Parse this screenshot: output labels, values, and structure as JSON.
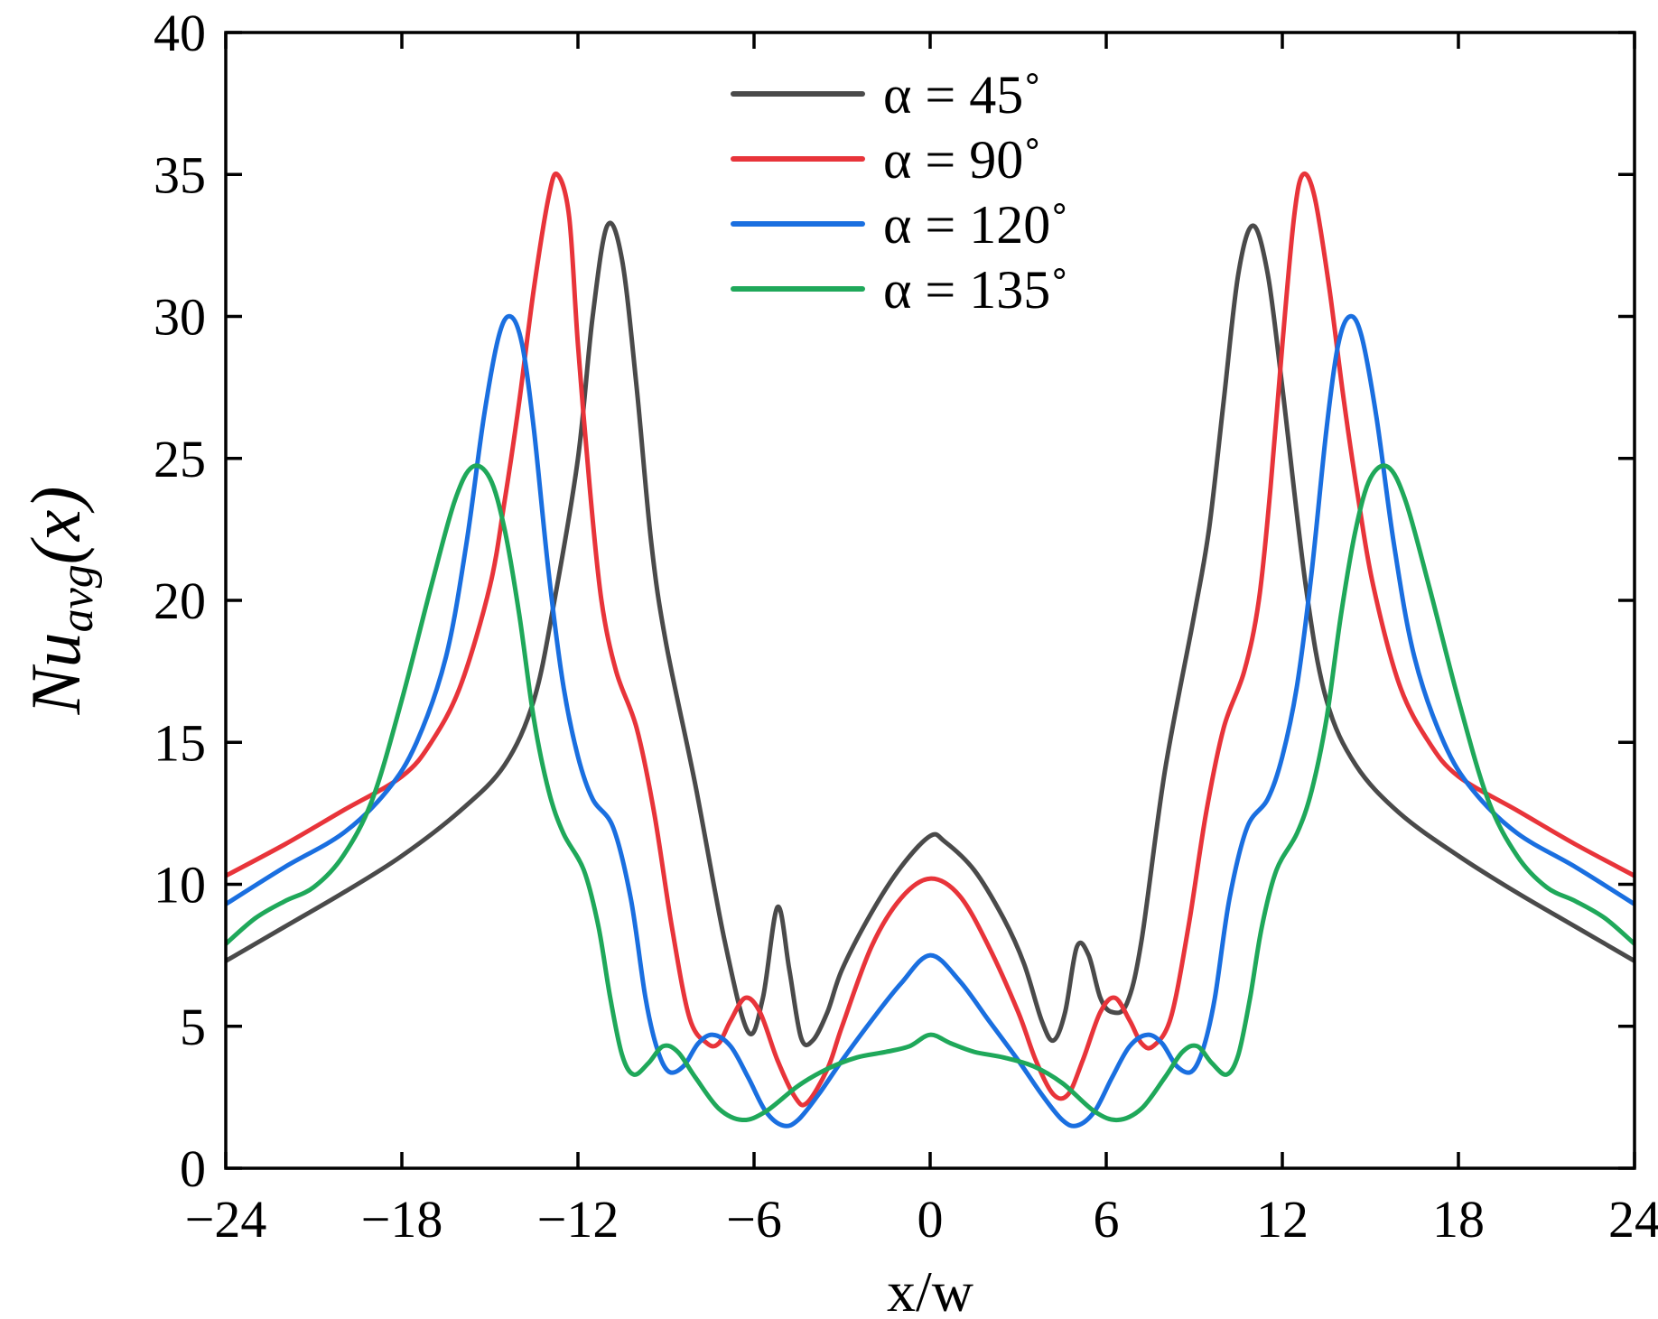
{
  "chart_data": {
    "type": "line",
    "title": "",
    "xlabel": "x/w",
    "ylabel_main": "Nu",
    "ylabel_sub": "avg",
    "ylabel_suffix": "(x)",
    "xlim": [
      -24,
      24
    ],
    "ylim": [
      0,
      40
    ],
    "xticks": [
      -24,
      -18,
      -12,
      -6,
      0,
      6,
      12,
      18,
      24
    ],
    "xtick_labels": [
      "−24",
      "−18",
      "−12",
      "−6",
      "0",
      "6",
      "12",
      "18",
      "24"
    ],
    "yticks": [
      0,
      5,
      10,
      15,
      20,
      25,
      30,
      35,
      40
    ],
    "ytick_labels": [
      "0",
      "5",
      "10",
      "15",
      "20",
      "25",
      "30",
      "35",
      "40"
    ],
    "legend_position": "top-center",
    "series": [
      {
        "name": "α = 45˚",
        "color": "#4a4a4a",
        "points": [
          [
            -24,
            7.3
          ],
          [
            -22,
            8.5
          ],
          [
            -20,
            9.7
          ],
          [
            -18,
            11.0
          ],
          [
            -16,
            12.6
          ],
          [
            -14.5,
            14.2
          ],
          [
            -13.5,
            16.5
          ],
          [
            -12.8,
            20.0
          ],
          [
            -12.0,
            25.0
          ],
          [
            -11.5,
            30.0
          ],
          [
            -11.0,
            33.2
          ],
          [
            -10.5,
            32.0
          ],
          [
            -10.0,
            27.5
          ],
          [
            -9.5,
            22.0
          ],
          [
            -9.0,
            18.5
          ],
          [
            -8.0,
            13.5
          ],
          [
            -7.0,
            8.0
          ],
          [
            -6.2,
            4.8
          ],
          [
            -5.7,
            6.0
          ],
          [
            -5.2,
            9.2
          ],
          [
            -4.8,
            7.0
          ],
          [
            -4.4,
            4.6
          ],
          [
            -4.0,
            4.5
          ],
          [
            -3.5,
            5.5
          ],
          [
            -3.0,
            7.0
          ],
          [
            -2.0,
            9.0
          ],
          [
            -1.0,
            10.6
          ],
          [
            0.0,
            11.7
          ],
          [
            0.5,
            11.5
          ],
          [
            1.5,
            10.5
          ],
          [
            2.5,
            8.8
          ],
          [
            3.2,
            7.2
          ],
          [
            3.8,
            5.2
          ],
          [
            4.2,
            4.5
          ],
          [
            4.6,
            5.5
          ],
          [
            5.0,
            7.8
          ],
          [
            5.4,
            7.5
          ],
          [
            5.8,
            6.0
          ],
          [
            6.2,
            5.5
          ],
          [
            6.7,
            5.8
          ],
          [
            7.2,
            8.0
          ],
          [
            8.0,
            14.0
          ],
          [
            9.0,
            19.5
          ],
          [
            9.5,
            22.5
          ],
          [
            10.0,
            27.0
          ],
          [
            10.5,
            31.5
          ],
          [
            11.0,
            33.2
          ],
          [
            11.5,
            31.5
          ],
          [
            12.0,
            27.5
          ],
          [
            12.8,
            20.5
          ],
          [
            13.5,
            16.5
          ],
          [
            14.5,
            14.2
          ],
          [
            16.0,
            12.5
          ],
          [
            18.0,
            11.0
          ],
          [
            20.0,
            9.7
          ],
          [
            22.0,
            8.5
          ],
          [
            24.0,
            7.3
          ]
        ]
      },
      {
        "name": "α = 90˚",
        "color": "#e8343a",
        "points": [
          [
            -24,
            10.3
          ],
          [
            -22,
            11.4
          ],
          [
            -20,
            12.6
          ],
          [
            -18,
            13.8
          ],
          [
            -17,
            15.0
          ],
          [
            -16,
            17.0
          ],
          [
            -15,
            20.5
          ],
          [
            -14.5,
            23.5
          ],
          [
            -14.0,
            27.0
          ],
          [
            -13.5,
            31.0
          ],
          [
            -13.0,
            34.2
          ],
          [
            -12.7,
            35.0
          ],
          [
            -12.3,
            33.5
          ],
          [
            -12.0,
            29.0
          ],
          [
            -11.6,
            24.0
          ],
          [
            -11.2,
            20.0
          ],
          [
            -10.7,
            17.5
          ],
          [
            -10.0,
            15.5
          ],
          [
            -9.4,
            12.5
          ],
          [
            -8.8,
            8.5
          ],
          [
            -8.2,
            5.3
          ],
          [
            -7.6,
            4.4
          ],
          [
            -7.2,
            4.4
          ],
          [
            -6.8,
            5.2
          ],
          [
            -6.3,
            6.0
          ],
          [
            -5.8,
            5.5
          ],
          [
            -5.2,
            3.8
          ],
          [
            -4.6,
            2.5
          ],
          [
            -4.2,
            2.3
          ],
          [
            -3.5,
            3.5
          ],
          [
            -3.0,
            5.0
          ],
          [
            -2.0,
            7.8
          ],
          [
            -1.0,
            9.5
          ],
          [
            0.0,
            10.2
          ],
          [
            1.0,
            9.6
          ],
          [
            2.0,
            7.8
          ],
          [
            3.0,
            5.5
          ],
          [
            3.6,
            3.8
          ],
          [
            4.2,
            2.6
          ],
          [
            4.7,
            2.6
          ],
          [
            5.2,
            3.8
          ],
          [
            5.8,
            5.5
          ],
          [
            6.3,
            6.0
          ],
          [
            6.8,
            5.2
          ],
          [
            7.2,
            4.4
          ],
          [
            7.6,
            4.3
          ],
          [
            8.2,
            5.3
          ],
          [
            8.8,
            8.5
          ],
          [
            9.4,
            12.5
          ],
          [
            10.0,
            15.5
          ],
          [
            10.7,
            17.5
          ],
          [
            11.2,
            20.0
          ],
          [
            11.6,
            24.0
          ],
          [
            12.0,
            29.0
          ],
          [
            12.4,
            33.5
          ],
          [
            12.7,
            35.0
          ],
          [
            13.1,
            34.2
          ],
          [
            13.6,
            31.0
          ],
          [
            14.1,
            27.0
          ],
          [
            14.6,
            23.5
          ],
          [
            15.1,
            20.5
          ],
          [
            16.0,
            17.0
          ],
          [
            17.0,
            15.0
          ],
          [
            18.0,
            13.8
          ],
          [
            20.0,
            12.6
          ],
          [
            22.0,
            11.4
          ],
          [
            24.0,
            10.3
          ]
        ]
      },
      {
        "name": "α = 120˚",
        "color": "#1a6fe0",
        "points": [
          [
            -24,
            9.3
          ],
          [
            -22,
            10.6
          ],
          [
            -20,
            11.8
          ],
          [
            -18.5,
            13.3
          ],
          [
            -17.5,
            15.0
          ],
          [
            -16.5,
            18.0
          ],
          [
            -15.8,
            22.0
          ],
          [
            -15.2,
            26.5
          ],
          [
            -14.7,
            29.3
          ],
          [
            -14.3,
            30.0
          ],
          [
            -13.9,
            29.0
          ],
          [
            -13.5,
            26.0
          ],
          [
            -13.0,
            21.0
          ],
          [
            -12.5,
            17.0
          ],
          [
            -12.0,
            14.5
          ],
          [
            -11.5,
            13.0
          ],
          [
            -10.8,
            12.0
          ],
          [
            -10.2,
            9.5
          ],
          [
            -9.7,
            6.0
          ],
          [
            -9.3,
            4.2
          ],
          [
            -8.9,
            3.4
          ],
          [
            -8.4,
            3.6
          ],
          [
            -7.9,
            4.4
          ],
          [
            -7.4,
            4.7
          ],
          [
            -6.8,
            4.3
          ],
          [
            -6.2,
            3.2
          ],
          [
            -5.6,
            2.0
          ],
          [
            -5.0,
            1.5
          ],
          [
            -4.5,
            1.7
          ],
          [
            -3.8,
            2.6
          ],
          [
            -3.0,
            3.8
          ],
          [
            -2.0,
            5.2
          ],
          [
            -1.0,
            6.5
          ],
          [
            0.0,
            7.5
          ],
          [
            1.0,
            6.6
          ],
          [
            2.0,
            5.2
          ],
          [
            3.0,
            3.8
          ],
          [
            3.8,
            2.6
          ],
          [
            4.5,
            1.7
          ],
          [
            5.0,
            1.5
          ],
          [
            5.6,
            2.0
          ],
          [
            6.2,
            3.2
          ],
          [
            6.8,
            4.3
          ],
          [
            7.4,
            4.7
          ],
          [
            7.9,
            4.4
          ],
          [
            8.4,
            3.6
          ],
          [
            8.9,
            3.4
          ],
          [
            9.3,
            4.2
          ],
          [
            9.7,
            6.0
          ],
          [
            10.2,
            9.5
          ],
          [
            10.8,
            12.0
          ],
          [
            11.5,
            13.0
          ],
          [
            12.0,
            14.5
          ],
          [
            12.5,
            17.0
          ],
          [
            13.0,
            21.0
          ],
          [
            13.5,
            26.0
          ],
          [
            13.9,
            29.0
          ],
          [
            14.3,
            30.0
          ],
          [
            14.7,
            29.3
          ],
          [
            15.2,
            26.5
          ],
          [
            15.8,
            22.0
          ],
          [
            16.5,
            18.0
          ],
          [
            17.5,
            15.0
          ],
          [
            18.5,
            13.3
          ],
          [
            20.0,
            11.8
          ],
          [
            22.0,
            10.6
          ],
          [
            24.0,
            9.3
          ]
        ]
      },
      {
        "name": "α = 135˚",
        "color": "#1fa85a",
        "points": [
          [
            -24,
            7.9
          ],
          [
            -23,
            8.8
          ],
          [
            -22,
            9.4
          ],
          [
            -21,
            9.9
          ],
          [
            -20,
            11.0
          ],
          [
            -19,
            13.0
          ],
          [
            -18,
            16.5
          ],
          [
            -17.0,
            20.5
          ],
          [
            -16.2,
            23.5
          ],
          [
            -15.6,
            24.7
          ],
          [
            -15.0,
            24.3
          ],
          [
            -14.5,
            22.5
          ],
          [
            -14.0,
            19.5
          ],
          [
            -13.5,
            15.8
          ],
          [
            -13.0,
            13.3
          ],
          [
            -12.5,
            11.8
          ],
          [
            -11.8,
            10.5
          ],
          [
            -11.3,
            8.5
          ],
          [
            -10.9,
            6.0
          ],
          [
            -10.5,
            4.0
          ],
          [
            -10.1,
            3.3
          ],
          [
            -9.6,
            3.7
          ],
          [
            -9.1,
            4.3
          ],
          [
            -8.6,
            4.1
          ],
          [
            -8.0,
            3.2
          ],
          [
            -7.2,
            2.1
          ],
          [
            -6.4,
            1.7
          ],
          [
            -5.6,
            2.0
          ],
          [
            -4.5,
            2.9
          ],
          [
            -3.5,
            3.5
          ],
          [
            -2.5,
            3.9
          ],
          [
            -1.5,
            4.1
          ],
          [
            -0.7,
            4.3
          ],
          [
            0.0,
            4.7
          ],
          [
            0.7,
            4.4
          ],
          [
            1.5,
            4.1
          ],
          [
            2.5,
            3.9
          ],
          [
            3.5,
            3.6
          ],
          [
            4.5,
            3.0
          ],
          [
            5.6,
            2.0
          ],
          [
            6.4,
            1.7
          ],
          [
            7.2,
            2.1
          ],
          [
            8.0,
            3.2
          ],
          [
            8.6,
            4.1
          ],
          [
            9.1,
            4.3
          ],
          [
            9.6,
            3.7
          ],
          [
            10.1,
            3.3
          ],
          [
            10.5,
            4.0
          ],
          [
            10.9,
            6.0
          ],
          [
            11.3,
            8.5
          ],
          [
            11.8,
            10.5
          ],
          [
            12.5,
            11.8
          ],
          [
            13.0,
            13.3
          ],
          [
            13.5,
            15.8
          ],
          [
            14.0,
            19.5
          ],
          [
            14.5,
            22.5
          ],
          [
            15.0,
            24.3
          ],
          [
            15.6,
            24.7
          ],
          [
            16.2,
            23.5
          ],
          [
            17.0,
            20.5
          ],
          [
            18.0,
            16.5
          ],
          [
            19.0,
            13.0
          ],
          [
            20.0,
            11.0
          ],
          [
            21.0,
            9.9
          ],
          [
            22.0,
            9.4
          ],
          [
            23.0,
            8.8
          ],
          [
            24.0,
            7.9
          ]
        ]
      }
    ]
  }
}
